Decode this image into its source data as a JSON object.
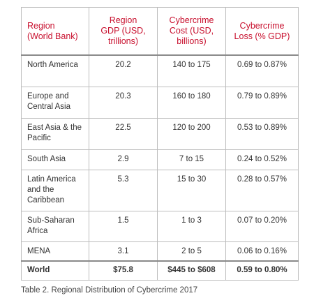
{
  "table": {
    "headers": [
      "Region\n(World Bank)",
      "Region\nGDP (USD,\ntrillions)",
      "Cybercrime\nCost (USD,\nbillions)",
      "Cybercrime\nLoss (% GDP)"
    ],
    "rows": [
      [
        "North America",
        "20.2",
        "140 to 175",
        "0.69 to 0.87%"
      ],
      [
        "Europe and Central Asia",
        "20.3",
        "160 to 180",
        "0.79 to 0.89%"
      ],
      [
        "East Asia & the Pacific",
        "22.5",
        "120 to 200",
        "0.53 to 0.89%"
      ],
      [
        "South Asia",
        "2.9",
        "7 to 15",
        "0.24 to 0.52%"
      ],
      [
        "Latin America and the Caribbean",
        "5.3",
        "15 to 30",
        "0.28 to 0.57%"
      ],
      [
        "Sub-Saharan Africa",
        "1.5",
        "1 to 3",
        "0.07 to 0.20%"
      ],
      [
        "MENA",
        "3.1",
        "2 to 5",
        "0.06 to 0.16%"
      ]
    ],
    "total": [
      "World",
      "$75.8",
      "$445 to $608",
      "0.59 to 0.80%"
    ]
  },
  "caption": "Table 2. Regional Distribution of Cybercrime 2017",
  "colors": {
    "header_text": "#c8102e",
    "body_text": "#333333",
    "border": "#bdbdbd"
  }
}
